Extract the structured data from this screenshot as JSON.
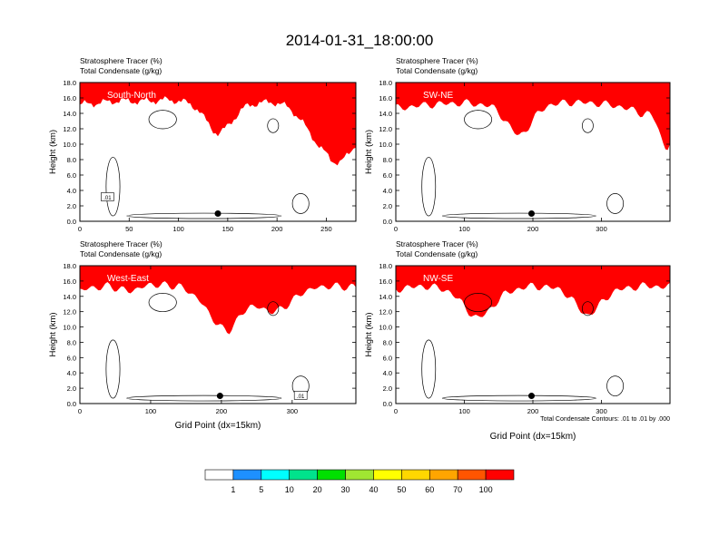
{
  "figure": {
    "title": "2014-01-31_18:00:00",
    "contour_note": "Total Condensate Contours: .01 to .01 by .000"
  },
  "colorbar": {
    "colors": [
      "#ffffff",
      "#1e90ff",
      "#00ffff",
      "#00e38c",
      "#00e000",
      "#a0e632",
      "#ffff00",
      "#ffd700",
      "#ffa500",
      "#ff5500",
      "#ff0000"
    ],
    "labels": [
      "1",
      "5",
      "10",
      "20",
      "30",
      "40",
      "50",
      "60",
      "70",
      "100"
    ]
  },
  "chart_data": [
    {
      "type": "heatmap",
      "label": "South-North",
      "line1": "Stratosphere Tracer   (%)",
      "line2": "Total Condensate   (g/kg)",
      "xlabel": "",
      "ylabel": "Height (km)",
      "xlim": [
        0,
        280
      ],
      "ylim": [
        0,
        18
      ],
      "xticks": [
        0,
        50,
        100,
        150,
        200,
        250
      ],
      "yticks": [
        "0.0",
        "2.0",
        "4.0",
        "6.0",
        "8.0",
        "10.0",
        "12.0",
        "14.0",
        "16.0",
        "18.0"
      ],
      "marker": {
        "x": 140,
        "y": 1.0
      },
      "contour_label": ".01",
      "tracer_top": {
        "x": [
          0,
          20,
          40,
          60,
          90,
          120,
          140,
          170,
          200,
          230,
          250,
          265,
          280
        ],
        "y": [
          14.8,
          15.0,
          15.3,
          15.2,
          15.4,
          15.1,
          13.6,
          14.9,
          15.2,
          14.6,
          14.9,
          14.0,
          13.8
        ]
      },
      "tracer_intrusions": [
        {
          "x": 140,
          "width": 20,
          "depth": 2.6
        },
        {
          "x": 258,
          "width": 30,
          "depth": 7.0
        }
      ]
    },
    {
      "type": "heatmap",
      "label": "SW-NE",
      "line1": "Stratosphere Tracer   (%)",
      "line2": "Total Condensate   (g/kg)",
      "xlabel": "",
      "ylabel": "Height (km)",
      "xlim": [
        0,
        400
      ],
      "ylim": [
        0,
        18
      ],
      "xticks": [
        0,
        100,
        200,
        300
      ],
      "yticks": [
        "0.0",
        "2.0",
        "4.0",
        "6.0",
        "8.0",
        "10.0",
        "12.0",
        "14.0",
        "16.0",
        "18.0"
      ],
      "marker": {
        "x": 198,
        "y": 1.0
      },
      "contour_label": "",
      "tracer_top": {
        "x": [
          0,
          50,
          100,
          140,
          180,
          220,
          260,
          300,
          330,
          360,
          380,
          400
        ],
        "y": [
          14.3,
          14.8,
          15.0,
          14.7,
          13.6,
          14.8,
          15.1,
          14.9,
          14.5,
          13.6,
          14.2,
          14.6
        ]
      },
      "tracer_intrusions": [
        {
          "x": 180,
          "width": 25,
          "depth": 2.8
        },
        {
          "x": 395,
          "width": 15,
          "depth": 5.2
        }
      ]
    },
    {
      "type": "heatmap",
      "label": "West-East",
      "line1": "Stratosphere Tracer   (%)",
      "line2": "Total Condensate   (g/kg)",
      "xlabel": "Grid Point (dx=15km)",
      "ylabel": "Height (km)",
      "xlim": [
        0,
        390
      ],
      "ylim": [
        0,
        18
      ],
      "xticks": [
        0,
        100,
        200,
        300
      ],
      "yticks": [
        "0.0",
        "2.0",
        "4.0",
        "6.0",
        "8.0",
        "10.0",
        "12.0",
        "14.0",
        "16.0",
        "18.0"
      ],
      "marker": {
        "x": 198,
        "y": 1.0
      },
      "contour_label": ".01",
      "tracer_top": {
        "x": [
          0,
          40,
          70,
          100,
          140,
          190,
          210,
          240,
          280,
          320,
          360,
          390
        ],
        "y": [
          14.5,
          15.0,
          14.3,
          15.2,
          15.0,
          13.0,
          12.5,
          14.6,
          14.0,
          14.9,
          15.0,
          14.8
        ]
      },
      "tracer_intrusions": [
        {
          "x": 205,
          "width": 30,
          "depth": 3.2
        },
        {
          "x": 270,
          "width": 40,
          "depth": 2.4
        }
      ]
    },
    {
      "type": "heatmap",
      "label": "NW-SE",
      "line1": "Stratosphere Tracer   (%)",
      "line2": "Total Condensate   (g/kg)",
      "xlabel": "Grid Point (dx=15km)",
      "ylabel": "Height (km)",
      "xlim": [
        0,
        400
      ],
      "ylim": [
        0,
        18
      ],
      "xticks": [
        0,
        100,
        200,
        300
      ],
      "yticks": [
        "0.0",
        "2.0",
        "4.0",
        "6.0",
        "8.0",
        "10.0",
        "12.0",
        "14.0",
        "16.0",
        "18.0"
      ],
      "marker": {
        "x": 198,
        "y": 1.0
      },
      "contour_label": "",
      "tracer_top": {
        "x": [
          0,
          40,
          80,
          120,
          160,
          200,
          240,
          280,
          320,
          360,
          400
        ],
        "y": [
          14.6,
          15.0,
          14.6,
          13.4,
          14.4,
          15.0,
          14.7,
          13.6,
          14.5,
          15.0,
          14.9
        ]
      },
      "tracer_intrusions": [
        {
          "x": 120,
          "width": 30,
          "depth": 2.6
        },
        {
          "x": 280,
          "width": 25,
          "depth": 2.4
        }
      ]
    }
  ]
}
